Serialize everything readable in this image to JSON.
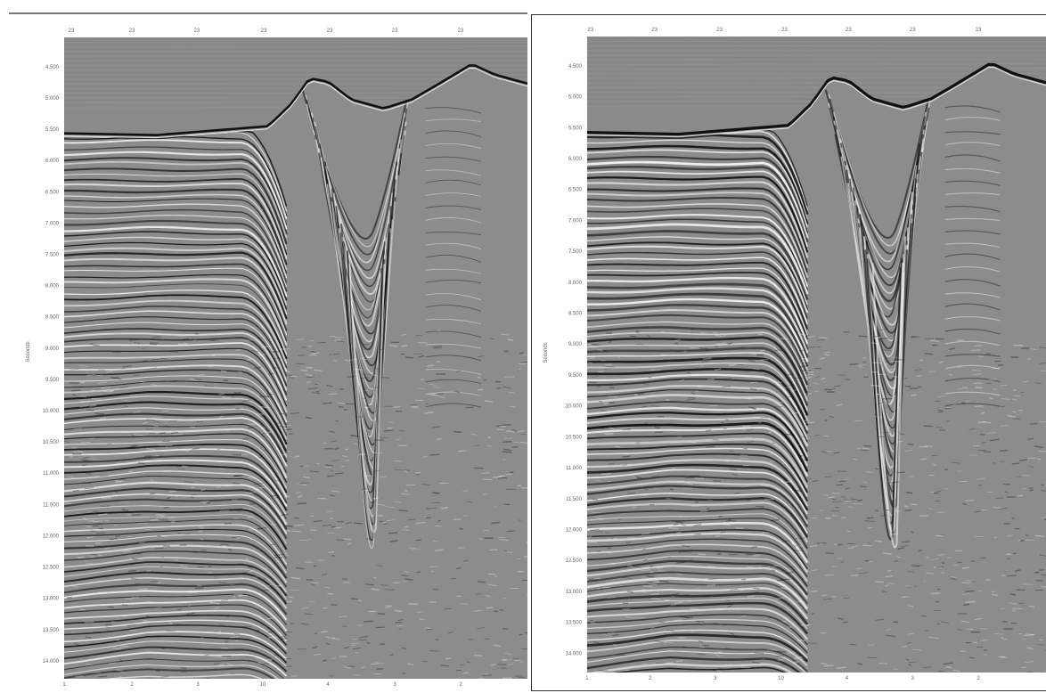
{
  "panels": [
    {
      "id": "left",
      "y_axis_title": "Seconds",
      "top_labels": [
        "23",
        "23",
        "23",
        "23",
        "23",
        "23",
        "23"
      ],
      "y_ticks": [
        "4.500",
        "5.000",
        "5.500",
        "6.000",
        "6.500",
        "7.000",
        "7.500",
        "8.000",
        "8.500",
        "9.000",
        "9.500",
        "10.000",
        "10.500",
        "11.000",
        "11.500",
        "12.000",
        "12.500",
        "13.000",
        "13.500",
        "14.000"
      ],
      "bottom_labels": [
        "1",
        "2",
        "3",
        "10",
        "4",
        "3",
        "2"
      ]
    },
    {
      "id": "right",
      "y_axis_title": "Seconds",
      "top_labels": [
        "23",
        "23",
        "23",
        "23",
        "23",
        "23",
        "23"
      ],
      "y_ticks": [
        "4.500",
        "5.000",
        "5.500",
        "6.000",
        "6.500",
        "7.000",
        "7.500",
        "8.000",
        "8.500",
        "9.000",
        "9.500",
        "10.000",
        "10.500",
        "11.000",
        "11.500",
        "12.000",
        "12.500",
        "13.000",
        "13.500",
        "14.000"
      ],
      "bottom_labels": [
        "1",
        "2",
        "3",
        "10",
        "4",
        "3",
        "2"
      ]
    }
  ],
  "colors": {
    "background": "#8a8a8a",
    "dark": "#111111",
    "light": "#f4f4f4"
  }
}
